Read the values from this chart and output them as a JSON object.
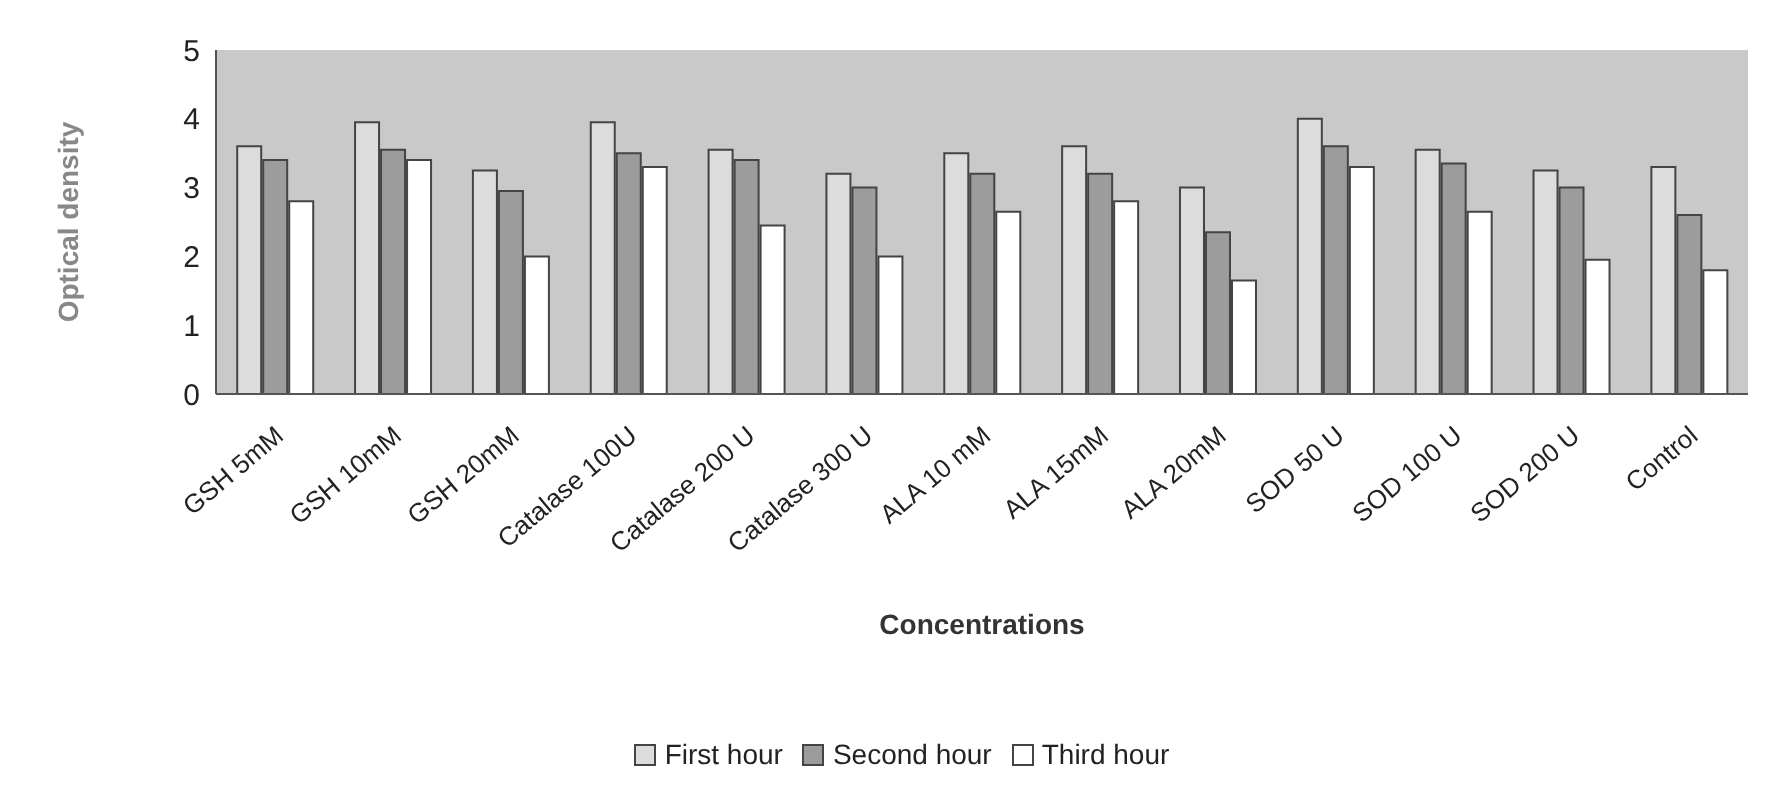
{
  "chart_data": {
    "type": "bar",
    "xlabel": "Concentrations",
    "ylabel": "Optical density",
    "categories": [
      "GSH 5mM",
      "GSH 10mM",
      "GSH 20mM",
      "Catalase 100U",
      "Catalase 200 U",
      "Catalase 300 U",
      "ALA 10 mM",
      "ALA 15mM",
      "ALA 20mM",
      "SOD 50 U",
      "SOD 100 U",
      "SOD 200 U",
      "Control"
    ],
    "series": [
      {
        "name": "First hour",
        "color": "#dcdcdc",
        "values": [
          3.6,
          3.95,
          3.25,
          3.95,
          3.55,
          3.2,
          3.5,
          3.6,
          3.0,
          4.0,
          3.55,
          3.25,
          3.3
        ]
      },
      {
        "name": "Second hour",
        "color": "#9c9c9c",
        "values": [
          3.4,
          3.55,
          2.95,
          3.5,
          3.4,
          3.0,
          3.2,
          3.2,
          2.35,
          3.6,
          3.35,
          3.0,
          2.6
        ]
      },
      {
        "name": "Third hour",
        "color": "#ffffff",
        "values": [
          2.8,
          3.4,
          2.0,
          3.3,
          2.45,
          2.0,
          2.65,
          2.8,
          1.65,
          3.3,
          2.65,
          1.95,
          1.8
        ]
      }
    ],
    "ylim": [
      0,
      5
    ],
    "yticks": [
      0,
      1,
      2,
      3,
      4,
      5
    ],
    "grid": false,
    "legend": "bottom"
  }
}
